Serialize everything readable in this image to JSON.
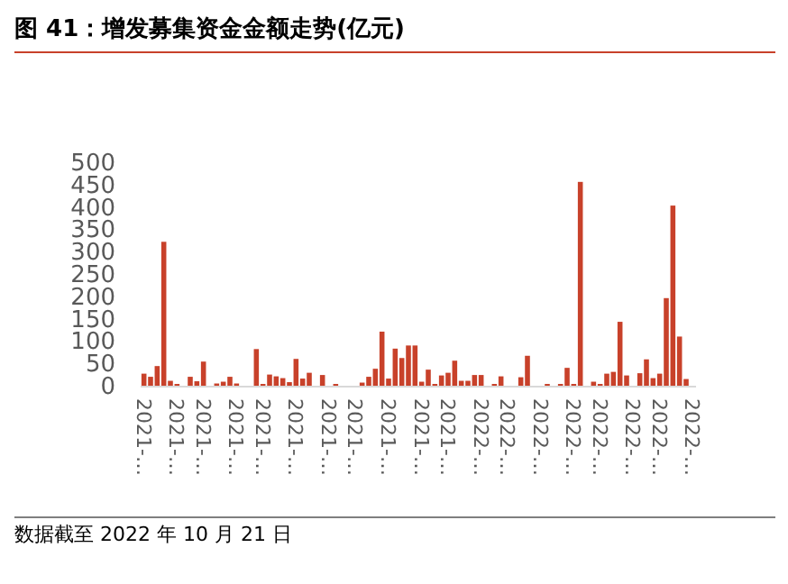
{
  "chart_data": {
    "type": "bar",
    "title": "图 41：增发募集资金金额走势(亿元)",
    "categories": [
      "2021-…",
      null,
      null,
      null,
      null,
      "2021-…",
      null,
      null,
      null,
      "2021-…",
      null,
      null,
      null,
      null,
      "2021-…",
      null,
      null,
      null,
      "2021-…",
      null,
      null,
      null,
      null,
      "2021-…",
      null,
      null,
      null,
      null,
      "2021-…",
      null,
      null,
      null,
      "2021-…",
      null,
      null,
      null,
      null,
      "2021-…",
      null,
      null,
      null,
      null,
      "2021-…",
      null,
      null,
      null,
      "2021-…",
      null,
      null,
      null,
      null,
      "2022-…",
      null,
      null,
      null,
      "2022-…",
      null,
      null,
      null,
      null,
      "2022-…",
      null,
      null,
      null,
      null,
      "2022-…",
      null,
      null,
      null,
      "2022-…",
      null,
      null,
      null,
      null,
      "2022-…",
      null,
      null,
      null,
      "2022-…",
      null,
      null,
      null,
      null,
      "2022-…"
    ],
    "values": [
      27,
      20,
      44,
      322,
      11,
      4,
      0,
      20,
      10,
      54,
      0,
      5,
      9,
      20,
      5,
      0,
      0,
      82,
      4,
      25,
      21,
      17,
      8,
      60,
      16,
      29,
      0,
      24,
      0,
      4,
      0,
      0,
      0,
      7,
      20,
      38,
      121,
      16,
      83,
      62,
      90,
      90,
      9,
      36,
      4,
      23,
      29,
      56,
      11,
      11,
      24,
      24,
      0,
      4,
      21,
      0,
      0,
      19,
      67,
      0,
      0,
      4,
      0,
      4,
      40,
      4,
      456,
      0,
      9,
      4,
      27,
      31,
      143,
      23,
      0,
      28,
      59,
      17,
      27,
      196,
      403,
      110,
      15,
      0
    ],
    "color": "#c8412a",
    "ylim": [
      0,
      500
    ],
    "yticks": [
      0,
      50,
      100,
      150,
      200,
      250,
      300,
      350,
      400,
      450,
      500
    ],
    "annotations": [
      "数据截至 2022 年 10 月 21 日"
    ]
  }
}
